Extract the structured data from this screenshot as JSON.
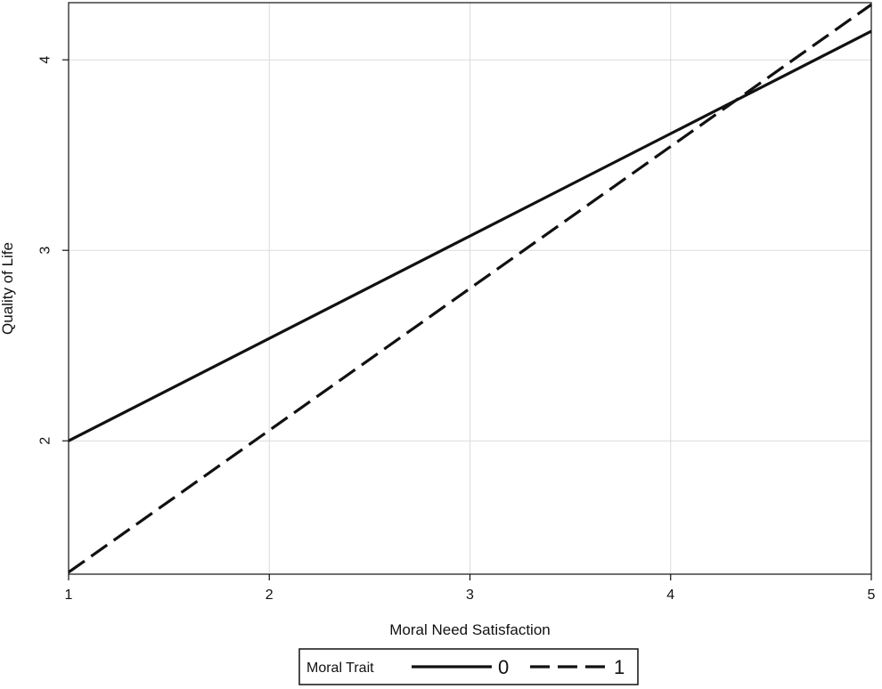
{
  "chart_data": {
    "type": "line",
    "title": "",
    "xlabel": "Moral Need Satisfaction",
    "ylabel": "Quality of Life",
    "xlim": [
      1,
      5
    ],
    "ylim": [
      1.3,
      4.3
    ],
    "xticks": [
      1,
      2,
      3,
      4,
      5
    ],
    "yticks": [
      2,
      3,
      4
    ],
    "grid": true,
    "legend": {
      "title": "Moral Trait",
      "placement": "bottom-center"
    },
    "series": [
      {
        "name": "0",
        "style": "solid",
        "color": "#111111",
        "x": [
          1,
          5
        ],
        "y": [
          2.0,
          4.15
        ]
      },
      {
        "name": "1",
        "style": "dashed",
        "color": "#111111",
        "x": [
          1,
          5
        ],
        "y": [
          1.31,
          4.29
        ]
      }
    ]
  }
}
